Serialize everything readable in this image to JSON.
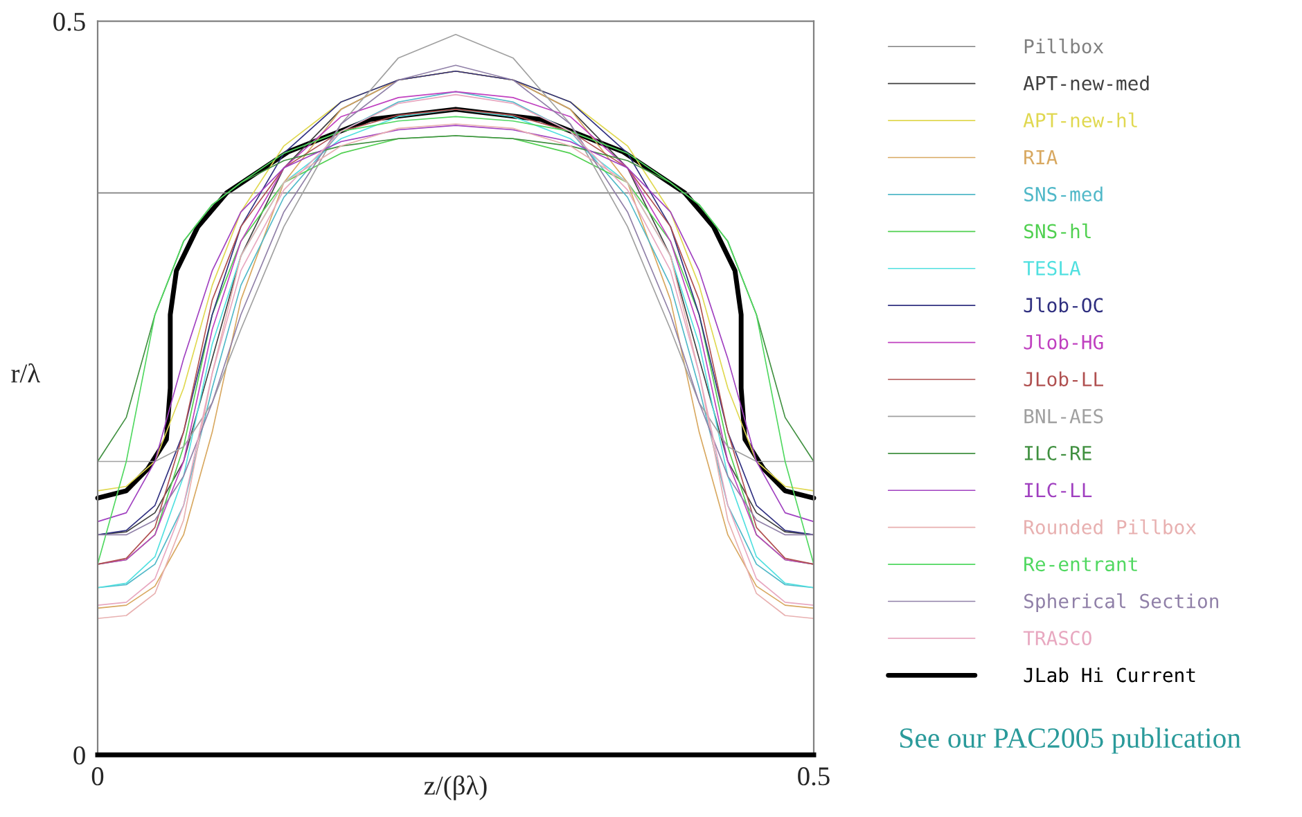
{
  "chart_data": {
    "type": "line",
    "xlabel": "z/(βλ)",
    "ylabel": "r/λ",
    "x": [
      0,
      0.02,
      0.04,
      0.06,
      0.08,
      0.1,
      0.13,
      0.17,
      0.21,
      0.25,
      0.29,
      0.33,
      0.37,
      0.4,
      0.42,
      0.44,
      0.46,
      0.48,
      0.5
    ],
    "xlim": [
      0,
      0.5
    ],
    "ylim": [
      0,
      0.5
    ],
    "xticks": [
      0,
      0.5
    ],
    "yticks": [
      0,
      0.5
    ],
    "grid": false,
    "legend": "right",
    "marker": "none",
    "line_style": "solid",
    "annotations": [
      "See our PAC2005 publication"
    ],
    "series": [
      {
        "name": "Pillbox",
        "color": "#808080",
        "x": [
          0,
          0,
          0.5,
          0.5
        ],
        "values": [
          0.175,
          0.383,
          0.383,
          0.175
        ]
      },
      {
        "name": "APT-new-med",
        "color": "#404040",
        "values": [
          0.15,
          0.152,
          0.165,
          0.2,
          0.27,
          0.34,
          0.4,
          0.44,
          0.46,
          0.466,
          0.46,
          0.44,
          0.4,
          0.34,
          0.27,
          0.2,
          0.165,
          0.152,
          0.15
        ]
      },
      {
        "name": "APT-new-hl",
        "color": "#e0d850",
        "values": [
          0.18,
          0.183,
          0.2,
          0.25,
          0.32,
          0.37,
          0.415,
          0.445,
          0.46,
          0.466,
          0.46,
          0.445,
          0.415,
          0.37,
          0.32,
          0.25,
          0.2,
          0.183,
          0.18
        ]
      },
      {
        "name": "RIA",
        "color": "#d8a860",
        "values": [
          0.1,
          0.102,
          0.115,
          0.15,
          0.22,
          0.31,
          0.39,
          0.44,
          0.46,
          0.466,
          0.46,
          0.44,
          0.39,
          0.31,
          0.22,
          0.15,
          0.115,
          0.102,
          0.1
        ]
      },
      {
        "name": "SNS-med",
        "color": "#50b8c8",
        "values": [
          0.114,
          0.116,
          0.13,
          0.17,
          0.25,
          0.32,
          0.38,
          0.425,
          0.445,
          0.452,
          0.445,
          0.425,
          0.38,
          0.32,
          0.25,
          0.17,
          0.13,
          0.116,
          0.114
        ]
      },
      {
        "name": "SNS-hl",
        "color": "#50d050",
        "values": [
          0.13,
          0.133,
          0.15,
          0.21,
          0.3,
          0.35,
          0.39,
          0.41,
          0.42,
          0.422,
          0.42,
          0.41,
          0.39,
          0.35,
          0.3,
          0.21,
          0.15,
          0.133,
          0.13
        ]
      },
      {
        "name": "TESLA",
        "color": "#50e0e0",
        "values": [
          0.114,
          0.117,
          0.135,
          0.19,
          0.28,
          0.34,
          0.39,
          0.42,
          0.435,
          0.44,
          0.435,
          0.42,
          0.39,
          0.34,
          0.28,
          0.19,
          0.135,
          0.117,
          0.114
        ]
      },
      {
        "name": "Jlob-OC",
        "color": "#303080",
        "values": [
          0.15,
          0.153,
          0.17,
          0.22,
          0.3,
          0.36,
          0.41,
          0.445,
          0.46,
          0.466,
          0.46,
          0.445,
          0.41,
          0.36,
          0.3,
          0.22,
          0.17,
          0.153,
          0.15
        ]
      },
      {
        "name": "Jlob-HG",
        "color": "#c040c0",
        "values": [
          0.13,
          0.133,
          0.15,
          0.2,
          0.29,
          0.35,
          0.4,
          0.435,
          0.448,
          0.452,
          0.448,
          0.435,
          0.4,
          0.35,
          0.29,
          0.2,
          0.15,
          0.133,
          0.13
        ]
      },
      {
        "name": "JLob-LL",
        "color": "#b05050",
        "values": [
          0.13,
          0.134,
          0.155,
          0.22,
          0.31,
          0.36,
          0.4,
          0.425,
          0.436,
          0.44,
          0.436,
          0.425,
          0.4,
          0.36,
          0.31,
          0.22,
          0.155,
          0.134,
          0.13
        ]
      },
      {
        "name": "BNL-AES",
        "color": "#a0a0a0",
        "values": [
          0.2,
          0.2,
          0.2,
          0.21,
          0.24,
          0.29,
          0.36,
          0.43,
          0.475,
          0.491,
          0.475,
          0.43,
          0.36,
          0.29,
          0.24,
          0.21,
          0.2,
          0.2,
          0.2
        ]
      },
      {
        "name": "ILC-RE",
        "color": "#409040",
        "values": [
          0.2,
          0.23,
          0.3,
          0.35,
          0.375,
          0.39,
          0.405,
          0.415,
          0.42,
          0.422,
          0.42,
          0.415,
          0.405,
          0.39,
          0.375,
          0.35,
          0.3,
          0.23,
          0.2
        ]
      },
      {
        "name": "ILC-LL",
        "color": "#a040c0",
        "values": [
          0.159,
          0.165,
          0.2,
          0.27,
          0.33,
          0.37,
          0.4,
          0.418,
          0.426,
          0.429,
          0.426,
          0.418,
          0.4,
          0.37,
          0.33,
          0.27,
          0.2,
          0.165,
          0.159
        ]
      },
      {
        "name": "Rounded Pillbox",
        "color": "#e8b0b0",
        "values": [
          0.093,
          0.095,
          0.11,
          0.16,
          0.26,
          0.34,
          0.39,
          0.415,
          0.427,
          0.43,
          0.427,
          0.415,
          0.39,
          0.34,
          0.26,
          0.16,
          0.11,
          0.095,
          0.093
        ]
      },
      {
        "name": "Re-entrant",
        "color": "#50d860",
        "values": [
          0.13,
          0.2,
          0.3,
          0.35,
          0.375,
          0.39,
          0.41,
          0.425,
          0.432,
          0.435,
          0.432,
          0.425,
          0.41,
          0.39,
          0.375,
          0.35,
          0.3,
          0.2,
          0.13
        ]
      },
      {
        "name": "Spherical Section",
        "color": "#9080a8",
        "values": [
          0.15,
          0.15,
          0.16,
          0.19,
          0.24,
          0.3,
          0.37,
          0.43,
          0.46,
          0.47,
          0.46,
          0.43,
          0.37,
          0.3,
          0.24,
          0.19,
          0.16,
          0.15,
          0.15
        ]
      },
      {
        "name": "TRASCO",
        "color": "#e8a8c0",
        "values": [
          0.102,
          0.104,
          0.12,
          0.17,
          0.26,
          0.33,
          0.385,
          0.425,
          0.444,
          0.45,
          0.444,
          0.425,
          0.385,
          0.33,
          0.26,
          0.17,
          0.12,
          0.104,
          0.102
        ]
      },
      {
        "name": "JLab Hi Current",
        "color": "#000000",
        "x": [
          0,
          0.02,
          0.035,
          0.048,
          0.0507,
          0.0507,
          0.055,
          0.07,
          0.09,
          0.133,
          0.19,
          0.25,
          0.31,
          0.367,
          0.41,
          0.43,
          0.445,
          0.4493,
          0.4493,
          0.452,
          0.465,
          0.48,
          0.5
        ],
        "values": [
          0.175,
          0.18,
          0.195,
          0.215,
          0.25,
          0.3,
          0.33,
          0.36,
          0.383,
          0.411,
          0.433,
          0.44,
          0.433,
          0.411,
          0.383,
          0.36,
          0.33,
          0.3,
          0.25,
          0.215,
          0.195,
          0.18,
          0.175
        ]
      }
    ]
  }
}
